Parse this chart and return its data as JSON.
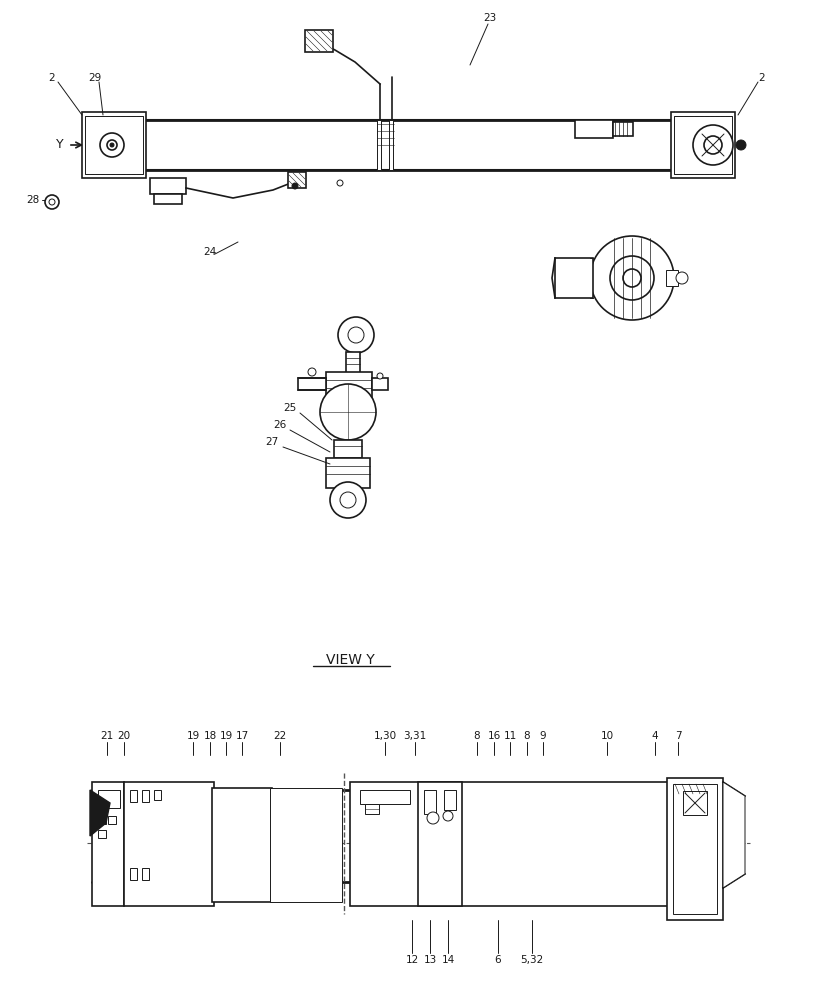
{
  "bg_color": "#ffffff",
  "line_color": "#1a1a1a",
  "view_y_label": "VIEW Y"
}
